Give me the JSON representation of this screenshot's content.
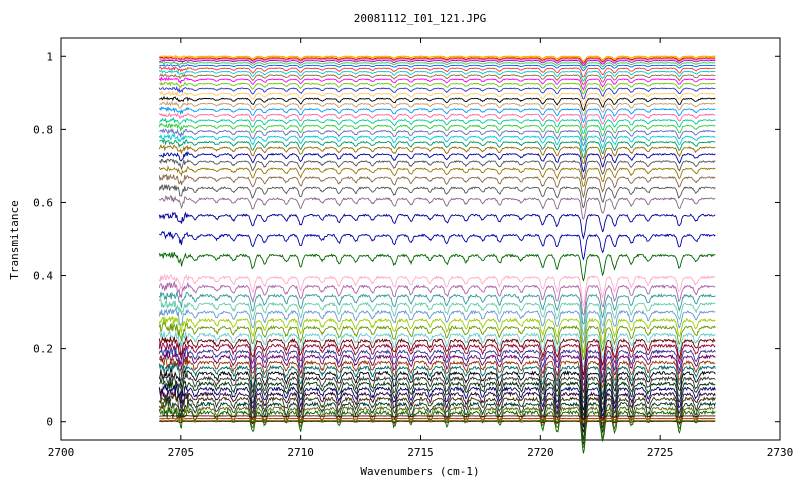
{
  "chart_data": {
    "type": "line",
    "title": "20081112_I01_121.JPG",
    "xlabel": "Wavenumbers (cm-1)",
    "ylabel": "Transmitance",
    "xlim": [
      2700,
      2730
    ],
    "ylim": [
      -0.05,
      1.05
    ],
    "x_ticks": [
      "2700",
      "2705",
      "2710",
      "2715",
      "2720",
      "2725",
      "2730"
    ],
    "y_ticks": [
      "0",
      "0.2",
      "0.4",
      "0.6",
      "0.8",
      "1"
    ],
    "x_range": [
      2704.1,
      2727.3
    ],
    "grid": false,
    "legend": "none",
    "absorption_lines": [
      {
        "pos": 2705.0,
        "depth": 0.5
      },
      {
        "pos": 2705.6,
        "depth": 0.35
      },
      {
        "pos": 2706.5,
        "depth": 0.3
      },
      {
        "pos": 2707.2,
        "depth": 0.4
      },
      {
        "pos": 2708.0,
        "depth": 0.9
      },
      {
        "pos": 2708.5,
        "depth": 0.55
      },
      {
        "pos": 2709.4,
        "depth": 0.45
      },
      {
        "pos": 2710.0,
        "depth": 0.8
      },
      {
        "pos": 2710.9,
        "depth": 0.35
      },
      {
        "pos": 2711.6,
        "depth": 0.55
      },
      {
        "pos": 2712.3,
        "depth": 0.45
      },
      {
        "pos": 2713.0,
        "depth": 0.4
      },
      {
        "pos": 2713.9,
        "depth": 0.65
      },
      {
        "pos": 2714.6,
        "depth": 0.5
      },
      {
        "pos": 2715.4,
        "depth": 0.35
      },
      {
        "pos": 2716.1,
        "depth": 0.6
      },
      {
        "pos": 2716.9,
        "depth": 0.45
      },
      {
        "pos": 2717.6,
        "depth": 0.4
      },
      {
        "pos": 2718.3,
        "depth": 0.55
      },
      {
        "pos": 2719.2,
        "depth": 0.35
      },
      {
        "pos": 2720.1,
        "depth": 0.8
      },
      {
        "pos": 2720.7,
        "depth": 0.9
      },
      {
        "pos": 2721.8,
        "depth": 1.8
      },
      {
        "pos": 2722.6,
        "depth": 1.3
      },
      {
        "pos": 2723.1,
        "depth": 0.9
      },
      {
        "pos": 2723.8,
        "depth": 0.6
      },
      {
        "pos": 2724.5,
        "depth": 0.45
      },
      {
        "pos": 2725.8,
        "depth": 0.9
      },
      {
        "pos": 2726.5,
        "depth": 0.45
      }
    ],
    "series": [
      {
        "baseline": 1.0,
        "color": "#ff9900"
      },
      {
        "baseline": 0.998,
        "color": "#ffcc00"
      },
      {
        "baseline": 0.995,
        "color": "#cc0000"
      },
      {
        "baseline": 0.992,
        "color": "#ff66cc"
      },
      {
        "baseline": 0.988,
        "color": "#9900cc"
      },
      {
        "baseline": 0.982,
        "color": "#33cc33"
      },
      {
        "baseline": 0.975,
        "color": "#0066ff"
      },
      {
        "baseline": 0.967,
        "color": "#ff3333"
      },
      {
        "baseline": 0.958,
        "color": "#00cccc"
      },
      {
        "baseline": 0.948,
        "color": "#996633"
      },
      {
        "baseline": 0.937,
        "color": "#ff00ff"
      },
      {
        "baseline": 0.925,
        "color": "#66cc00"
      },
      {
        "baseline": 0.912,
        "color": "#3333cc"
      },
      {
        "baseline": 0.898,
        "color": "#ffcc66"
      },
      {
        "baseline": 0.884,
        "color": "#000000"
      },
      {
        "baseline": 0.87,
        "color": "#cc9966"
      },
      {
        "baseline": 0.855,
        "color": "#0099ff"
      },
      {
        "baseline": 0.84,
        "color": "#ff6699"
      },
      {
        "baseline": 0.825,
        "color": "#00cc99"
      },
      {
        "baseline": 0.81,
        "color": "#33cc33"
      },
      {
        "baseline": 0.795,
        "color": "#6666cc"
      },
      {
        "baseline": 0.78,
        "color": "#00cccc"
      },
      {
        "baseline": 0.765,
        "color": "#009966"
      },
      {
        "baseline": 0.75,
        "color": "#996600"
      },
      {
        "baseline": 0.732,
        "color": "#000099"
      },
      {
        "baseline": 0.712,
        "color": "#555555"
      },
      {
        "baseline": 0.692,
        "color": "#997700"
      },
      {
        "baseline": 0.668,
        "color": "#886644"
      },
      {
        "baseline": 0.64,
        "color": "#555555"
      },
      {
        "baseline": 0.61,
        "color": "#886688"
      },
      {
        "baseline": 0.565,
        "color": "#000099"
      },
      {
        "baseline": 0.51,
        "color": "#0000aa"
      },
      {
        "baseline": 0.455,
        "color": "#006600"
      },
      {
        "baseline": 0.395,
        "color": "#ffaacc"
      },
      {
        "baseline": 0.37,
        "color": "#aa66aa"
      },
      {
        "baseline": 0.345,
        "color": "#339999"
      },
      {
        "baseline": 0.322,
        "color": "#66ccaa"
      },
      {
        "baseline": 0.3,
        "color": "#6699cc"
      },
      {
        "baseline": 0.278,
        "color": "#99cc00"
      },
      {
        "baseline": 0.258,
        "color": "#669900"
      },
      {
        "baseline": 0.238,
        "color": "#66cccc"
      },
      {
        "baseline": 0.222,
        "color": "#660000"
      },
      {
        "baseline": 0.208,
        "color": "#990033"
      },
      {
        "baseline": 0.192,
        "color": "#333399"
      },
      {
        "baseline": 0.178,
        "color": "#660066"
      },
      {
        "baseline": 0.162,
        "color": "#993300"
      },
      {
        "baseline": 0.148,
        "color": "#006666"
      },
      {
        "baseline": 0.133,
        "color": "#000000"
      },
      {
        "baseline": 0.118,
        "color": "#333333"
      },
      {
        "baseline": 0.104,
        "color": "#003300"
      },
      {
        "baseline": 0.09,
        "color": "#000066"
      },
      {
        "baseline": 0.076,
        "color": "#330033"
      },
      {
        "baseline": 0.062,
        "color": "#333300"
      },
      {
        "baseline": 0.048,
        "color": "#003333"
      },
      {
        "baseline": 0.036,
        "color": "#666600"
      },
      {
        "baseline": 0.025,
        "color": "#006600"
      },
      {
        "baseline": 0.016,
        "color": "#660000"
      },
      {
        "baseline": 0.009,
        "color": "#cc3300"
      },
      {
        "baseline": 0.004,
        "color": "#009900"
      },
      {
        "baseline": 0.001,
        "color": "#990000"
      }
    ]
  }
}
